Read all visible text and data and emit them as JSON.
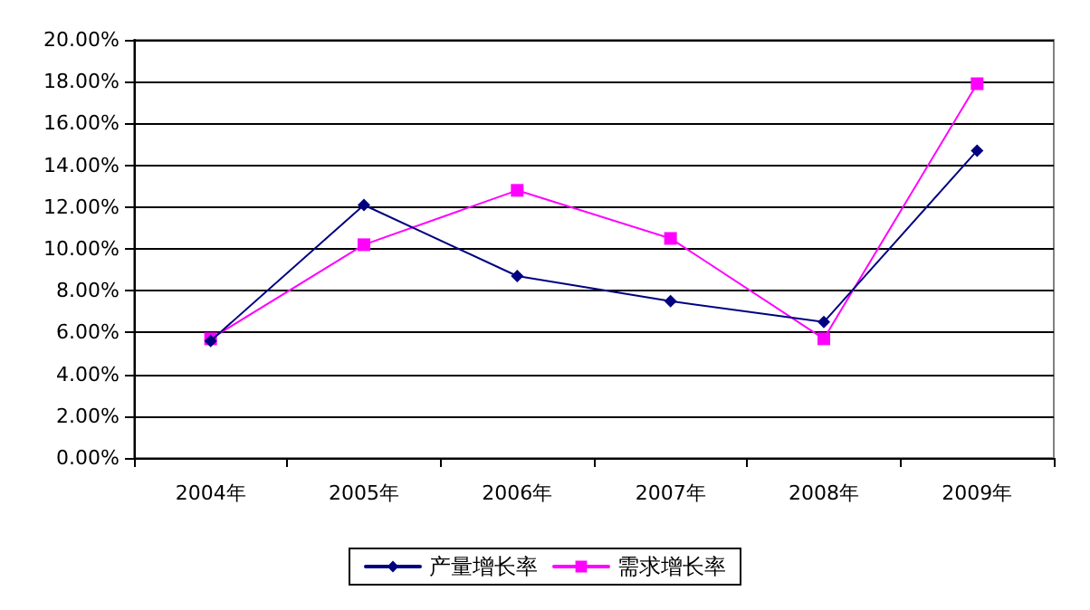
{
  "chart_data": {
    "type": "line",
    "categories": [
      "2004年",
      "2005年",
      "2006年",
      "2007年",
      "2008年",
      "2009年"
    ],
    "series": [
      {
        "name": "产量增长率",
        "color": "#000080",
        "marker": "diamond",
        "values": [
          5.6,
          12.1,
          8.7,
          7.5,
          6.5,
          14.7
        ]
      },
      {
        "name": "需求增长率",
        "color": "#ff00ff",
        "marker": "square",
        "values": [
          5.7,
          10.2,
          12.8,
          10.5,
          5.7,
          17.9
        ]
      }
    ],
    "ylim": [
      0,
      20
    ],
    "yticks": [
      {
        "value": 0,
        "label": "0.00%"
      },
      {
        "value": 2,
        "label": "2.00%"
      },
      {
        "value": 4,
        "label": "4.00%"
      },
      {
        "value": 6,
        "label": "6.00%"
      },
      {
        "value": 8,
        "label": "8.00%"
      },
      {
        "value": 10,
        "label": "10.00%"
      },
      {
        "value": 12,
        "label": "12.00%"
      },
      {
        "value": 14,
        "label": "14.00%"
      },
      {
        "value": 16,
        "label": "16.00%"
      },
      {
        "value": 18,
        "label": "18.00%"
      },
      {
        "value": 20,
        "label": "20.00%"
      }
    ],
    "grid": "y",
    "legend": "bottom",
    "line_style": "solid"
  }
}
